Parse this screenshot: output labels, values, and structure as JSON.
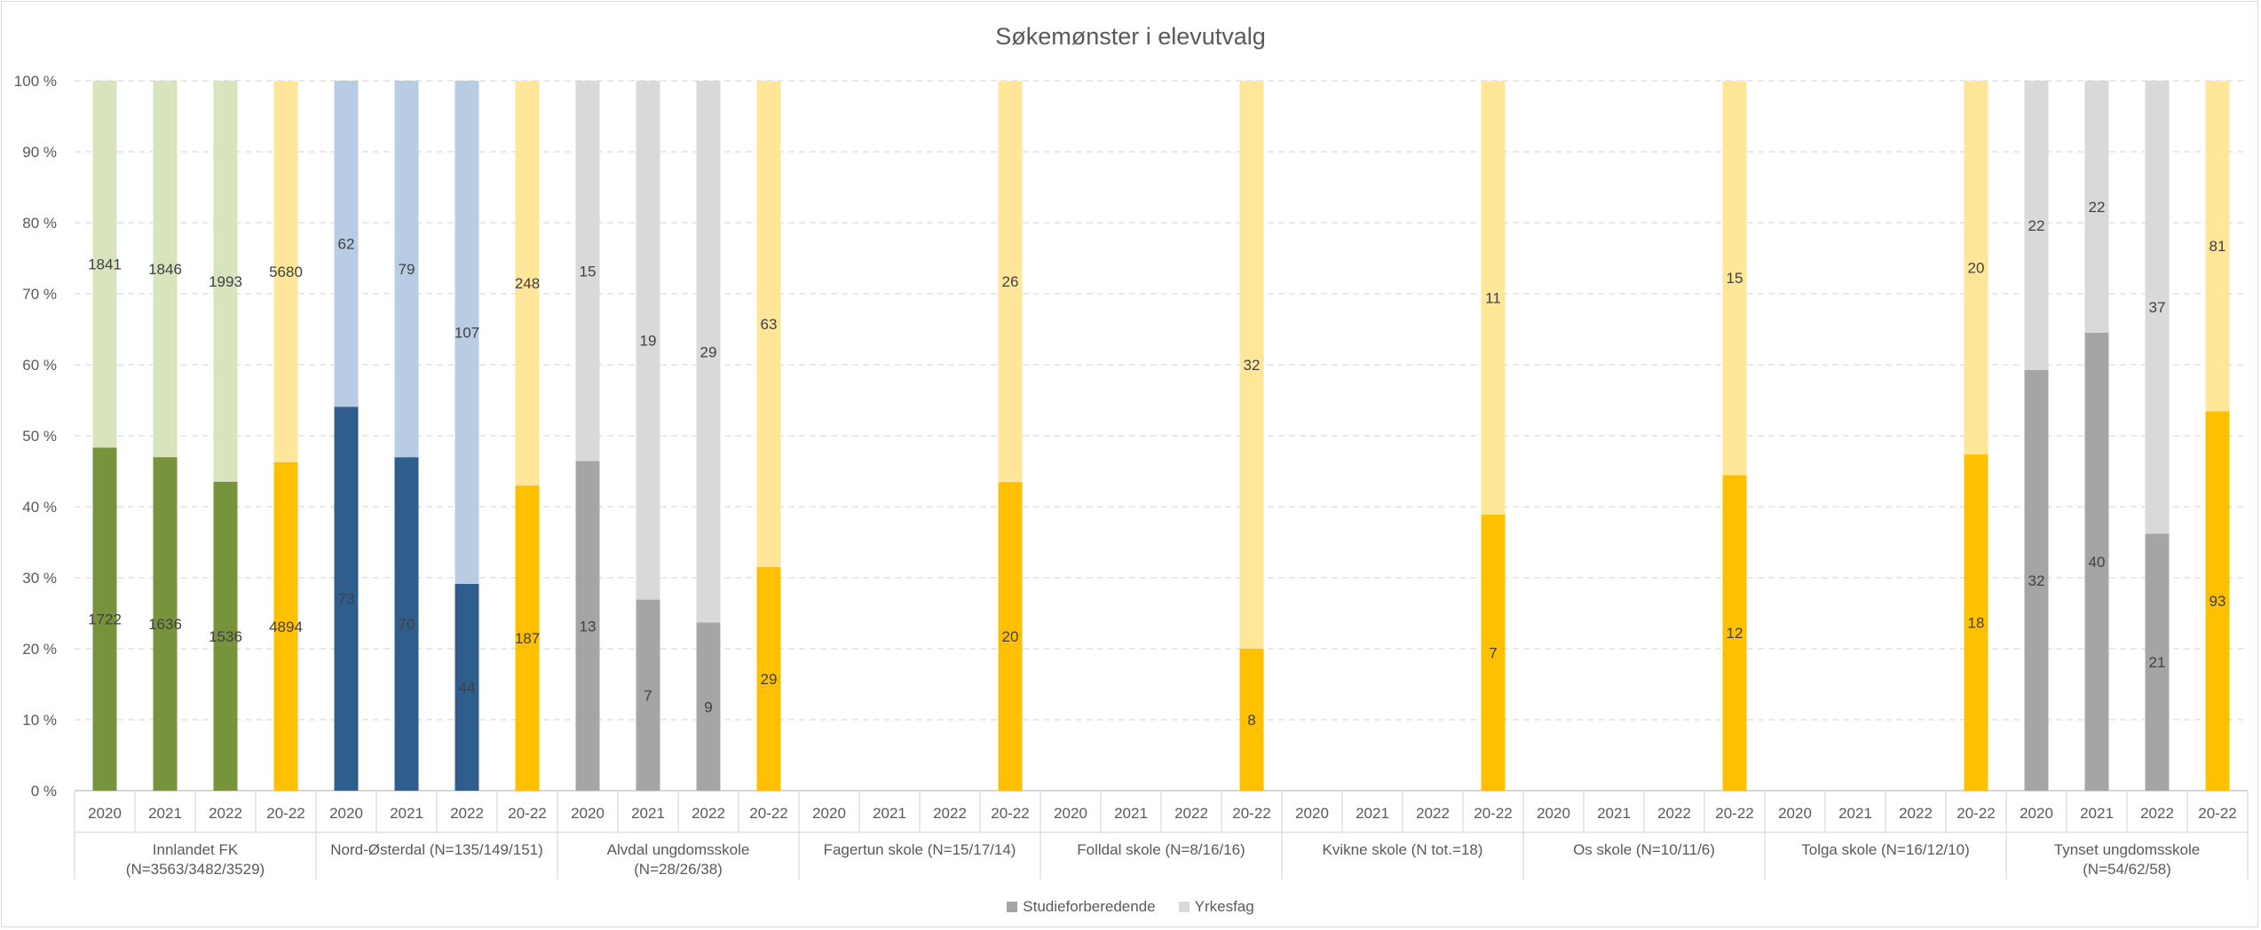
{
  "chart_data": {
    "type": "bar",
    "stacked": true,
    "normalized": true,
    "title": "Søkemønster i elevutvalg",
    "y_ticks": [
      "0 %",
      "10 %",
      "20 %",
      "30 %",
      "40 %",
      "50 %",
      "60 %",
      "70 %",
      "80 %",
      "90 %",
      "100 %"
    ],
    "ylim": [
      0,
      100
    ],
    "grid": true,
    "legend_position": "bottom",
    "legend": [
      {
        "label": "Studieforberedende",
        "color": "#a5a5a5"
      },
      {
        "label": "Yrkesfag",
        "color": "#d9d9d9"
      }
    ],
    "groups": [
      {
        "label_lines": [
          "Innlandet FK",
          "(N=3563/3482/3529)"
        ],
        "bars": [
          {
            "category": "2020",
            "studieforberedende": 1722,
            "yrkesfag": 1841,
            "color_bottom": "#77933c",
            "color_top": "#d7e4bd"
          },
          {
            "category": "2021",
            "studieforberedende": 1636,
            "yrkesfag": 1846,
            "color_bottom": "#77933c",
            "color_top": "#d7e4bd"
          },
          {
            "category": "2022",
            "studieforberedende": 1536,
            "yrkesfag": 1993,
            "color_bottom": "#77933c",
            "color_top": "#d7e4bd"
          },
          {
            "category": "20-22",
            "studieforberedende": 4894,
            "yrkesfag": 5680,
            "color_bottom": "#ffc000",
            "color_top": "#ffe699"
          }
        ]
      },
      {
        "label_lines": [
          "Nord-Østerdal (N=135/149/151)"
        ],
        "bars": [
          {
            "category": "2020",
            "studieforberedende": 73,
            "yrkesfag": 62,
            "color_bottom": "#2f5d8c",
            "color_top": "#b8cce4"
          },
          {
            "category": "2021",
            "studieforberedende": 70,
            "yrkesfag": 79,
            "color_bottom": "#2f5d8c",
            "color_top": "#b8cce4"
          },
          {
            "category": "2022",
            "studieforberedende": 44,
            "yrkesfag": 107,
            "color_bottom": "#2f5d8c",
            "color_top": "#b8cce4"
          },
          {
            "category": "20-22",
            "studieforberedende": 187,
            "yrkesfag": 248,
            "color_bottom": "#ffc000",
            "color_top": "#ffe699"
          }
        ]
      },
      {
        "label_lines": [
          "Alvdal ungdomsskole",
          "(N=28/26/38)"
        ],
        "bars": [
          {
            "category": "2020",
            "studieforberedende": 13,
            "yrkesfag": 15,
            "color_bottom": "#a5a5a5",
            "color_top": "#d9d9d9"
          },
          {
            "category": "2021",
            "studieforberedende": 7,
            "yrkesfag": 19,
            "color_bottom": "#a5a5a5",
            "color_top": "#d9d9d9"
          },
          {
            "category": "2022",
            "studieforberedende": 9,
            "yrkesfag": 29,
            "color_bottom": "#a5a5a5",
            "color_top": "#d9d9d9"
          },
          {
            "category": "20-22",
            "studieforberedende": 29,
            "yrkesfag": 63,
            "color_bottom": "#ffc000",
            "color_top": "#ffe699"
          }
        ]
      },
      {
        "label_lines": [
          "Fagertun skole (N=15/17/14)"
        ],
        "bars": [
          {
            "category": "2020",
            "studieforberedende": null,
            "yrkesfag": null
          },
          {
            "category": "2021",
            "studieforberedende": null,
            "yrkesfag": null
          },
          {
            "category": "2022",
            "studieforberedende": null,
            "yrkesfag": null
          },
          {
            "category": "20-22",
            "studieforberedende": 20,
            "yrkesfag": 26,
            "color_bottom": "#ffc000",
            "color_top": "#ffe699"
          }
        ]
      },
      {
        "label_lines": [
          "Folldal skole (N=8/16/16)"
        ],
        "bars": [
          {
            "category": "2020",
            "studieforberedende": null,
            "yrkesfag": null
          },
          {
            "category": "2021",
            "studieforberedende": null,
            "yrkesfag": null
          },
          {
            "category": "2022",
            "studieforberedende": null,
            "yrkesfag": null
          },
          {
            "category": "20-22",
            "studieforberedende": 8,
            "yrkesfag": 32,
            "color_bottom": "#ffc000",
            "color_top": "#ffe699"
          }
        ]
      },
      {
        "label_lines": [
          "Kvikne skole (N tot.=18)"
        ],
        "bars": [
          {
            "category": "2020",
            "studieforberedende": null,
            "yrkesfag": null
          },
          {
            "category": "2021",
            "studieforberedende": null,
            "yrkesfag": null
          },
          {
            "category": "2022",
            "studieforberedende": null,
            "yrkesfag": null
          },
          {
            "category": "20-22",
            "studieforberedende": 7,
            "yrkesfag": 11,
            "color_bottom": "#ffc000",
            "color_top": "#ffe699"
          }
        ]
      },
      {
        "label_lines": [
          "Os skole (N=10/11/6)"
        ],
        "bars": [
          {
            "category": "2020",
            "studieforberedende": null,
            "yrkesfag": null
          },
          {
            "category": "2021",
            "studieforberedende": null,
            "yrkesfag": null
          },
          {
            "category": "2022",
            "studieforberedende": null,
            "yrkesfag": null
          },
          {
            "category": "20-22",
            "studieforberedende": 12,
            "yrkesfag": 15,
            "color_bottom": "#ffc000",
            "color_top": "#ffe699"
          }
        ]
      },
      {
        "label_lines": [
          "Tolga skole (N=16/12/10)"
        ],
        "bars": [
          {
            "category": "2020",
            "studieforberedende": null,
            "yrkesfag": null
          },
          {
            "category": "2021",
            "studieforberedende": null,
            "yrkesfag": null
          },
          {
            "category": "2022",
            "studieforberedende": null,
            "yrkesfag": null
          },
          {
            "category": "20-22",
            "studieforberedende": 18,
            "yrkesfag": 20,
            "color_bottom": "#ffc000",
            "color_top": "#ffe699"
          }
        ]
      },
      {
        "label_lines": [
          "Tynset ungdomsskole",
          "(N=54/62/58)"
        ],
        "bars": [
          {
            "category": "2020",
            "studieforberedende": 32,
            "yrkesfag": 22,
            "color_bottom": "#a5a5a5",
            "color_top": "#d9d9d9"
          },
          {
            "category": "2021",
            "studieforberedende": 40,
            "yrkesfag": 22,
            "color_bottom": "#a5a5a5",
            "color_top": "#d9d9d9"
          },
          {
            "category": "2022",
            "studieforberedende": 21,
            "yrkesfag": 37,
            "color_bottom": "#a5a5a5",
            "color_top": "#d9d9d9"
          },
          {
            "category": "20-22",
            "studieforberedende": 93,
            "yrkesfag": 81,
            "color_bottom": "#ffc000",
            "color_top": "#ffe699"
          }
        ]
      }
    ]
  }
}
